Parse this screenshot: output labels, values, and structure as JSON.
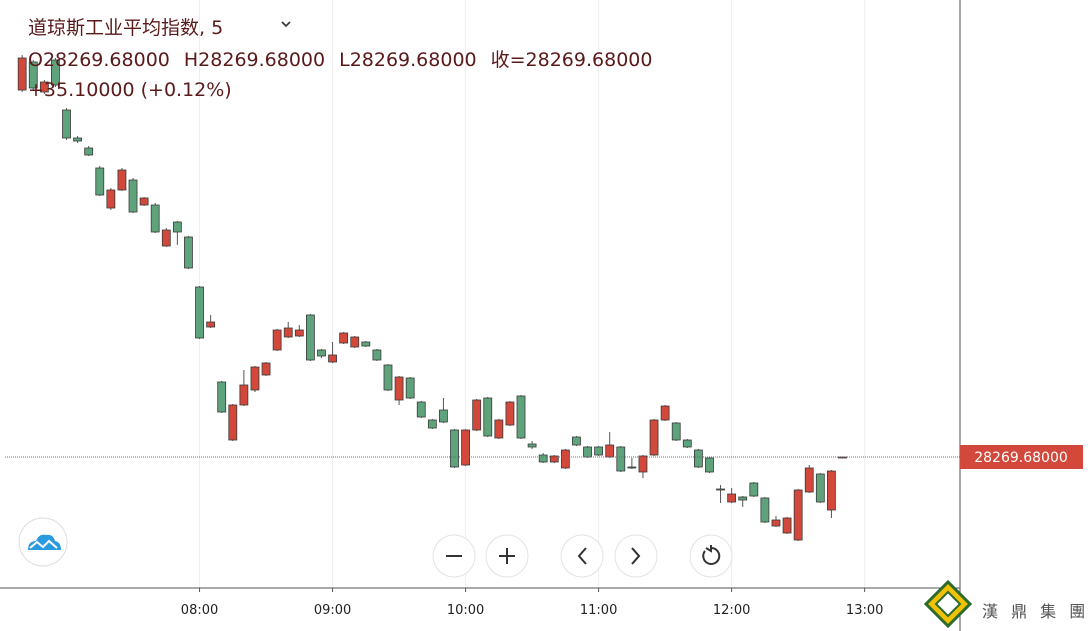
{
  "chart_data": {
    "type": "candlestick",
    "title": "道琼斯工业平均指数, 5",
    "ohlc_legend": [
      "O28269.68000",
      "H28269.68000",
      "L28269.68000",
      "收=28269.68000"
    ],
    "change_text": "+35.10000 (+0.12%)",
    "last_price": 28269.68,
    "last_price_label": "28269.68000",
    "watermark": "漢 鼎 集 團",
    "up_color": "#d2493b",
    "down_color": "#5fa37c",
    "xlim": [
      "06:30",
      "13:43"
    ],
    "xticks": [
      "08:00",
      "09:00",
      "10:00",
      "11:00",
      "12:00",
      "13:00"
    ],
    "ylim": [
      28204.18,
      28498.18
    ],
    "grid": true,
    "x": [
      "06:40",
      "06:45",
      "06:50",
      "06:55",
      "07:00",
      "07:05",
      "07:10",
      "07:15",
      "07:20",
      "07:25",
      "07:30",
      "07:35",
      "07:40",
      "07:45",
      "07:50",
      "07:55",
      "08:00",
      "08:05",
      "08:10",
      "08:15",
      "08:20",
      "08:25",
      "08:30",
      "08:35",
      "08:40",
      "08:45",
      "08:50",
      "08:55",
      "09:00",
      "09:05",
      "09:10",
      "09:15",
      "09:20",
      "09:25",
      "09:30",
      "09:35",
      "09:40",
      "09:45",
      "09:50",
      "09:55",
      "10:00",
      "10:05",
      "10:10",
      "10:15",
      "10:20",
      "10:25",
      "10:30",
      "10:35",
      "10:40",
      "10:45",
      "10:50",
      "10:55",
      "11:00",
      "11:05",
      "11:10",
      "11:15",
      "11:20",
      "11:25",
      "11:30",
      "11:35",
      "11:40",
      "11:45",
      "11:50",
      "11:55",
      "12:00",
      "12:05",
      "12:10",
      "12:15",
      "12:20",
      "12:25",
      "12:30",
      "12:35",
      "12:40",
      "12:45",
      "12:50"
    ],
    "open": [
      28453.18,
      28467.18,
      28452.18,
      28468.18,
      28443.18,
      28429.18,
      28424.18,
      28414.18,
      28394.18,
      28403.18,
      28408.18,
      28395.68,
      28395.68,
      28375.18,
      28387.18,
      28379.68,
      28354.68,
      28334.68,
      28307.18,
      28278.18,
      28295.68,
      28303.18,
      28310.68,
      28323.18,
      28329.68,
      28330.18,
      28340.68,
      28323.18,
      28317.18,
      28326.68,
      28324.68,
      28327.18,
      28323.18,
      28315.68,
      28298.18,
      28309.18,
      28297.18,
      28288.18,
      28293.18,
      28283.18,
      28265.68,
      28283.18,
      28299.18,
      28279.18,
      28285.68,
      28300.18,
      28276.18,
      28270.68,
      28267.18,
      28264.18,
      28279.68,
      28274.68,
      28274.68,
      28269.68,
      28274.68,
      28264.68,
      28262.18,
      28270.68,
      28288.18,
      28286.68,
      28278.18,
      28273.18,
      28269.18,
      28253.68,
      28247.18,
      28249.68,
      28256.68,
      28249.18,
      28235.18,
      28231.68,
      28228.18,
      28252.18,
      28261.18,
      28243.18,
      28269.68
    ],
    "high": [
      28470.68,
      28468.18,
      28458.18,
      28469.18,
      28444.18,
      28430.18,
      28425.18,
      28415.18,
      28404.18,
      28414.18,
      28409.18,
      28399.68,
      28396.68,
      28384.18,
      28387.68,
      28380.18,
      28355.18,
      28340.68,
      28307.68,
      28296.18,
      28313.18,
      28315.18,
      28317.18,
      28333.68,
      28337.18,
      28335.68,
      28341.18,
      28323.68,
      28327.18,
      28332.18,
      28330.18,
      28327.68,
      28323.68,
      28316.18,
      28310.18,
      28309.68,
      28297.68,
      28288.68,
      28299.18,
      28283.68,
      28283.68,
      28298.68,
      28299.68,
      28288.68,
      28297.68,
      28300.68,
      28277.68,
      28271.68,
      28270.68,
      28273.68,
      28280.18,
      28275.18,
      28275.18,
      28282.18,
      28275.18,
      28269.18,
      28270.68,
      28288.68,
      28295.68,
      28287.18,
      28278.68,
      28273.68,
      28269.68,
      28255.68,
      28254.18,
      28250.18,
      28257.18,
      28249.68,
      28240.18,
      28239.68,
      28253.68,
      28265.68,
      28261.68,
      28263.18,
      28269.68
    ],
    "low": [
      28452.18,
      28453.18,
      28451.18,
      28454.68,
      28428.18,
      28426.68,
      28420.18,
      28400.18,
      28393.18,
      28402.68,
      28391.68,
      28395.18,
      28381.68,
      28374.68,
      28375.68,
      28363.68,
      28328.68,
      28334.18,
      28291.68,
      28277.68,
      28295.18,
      28302.18,
      28310.18,
      28322.68,
      28329.18,
      28329.68,
      28317.68,
      28319.18,
      28316.68,
      28326.18,
      28324.18,
      28324.68,
      28317.68,
      28302.68,
      28295.68,
      28298.68,
      28289.18,
      28283.68,
      28286.68,
      28264.18,
      28265.18,
      28282.68,
      28279.68,
      28278.68,
      28285.18,
      28278.68,
      28273.68,
      28266.68,
      28266.68,
      28263.68,
      28275.18,
      28269.18,
      28270.18,
      28269.18,
      28262.18,
      28263.68,
      28259.18,
      28270.18,
      28287.68,
      28277.68,
      28274.18,
      28264.18,
      28261.68,
      28246.68,
      28246.68,
      28244.68,
      28249.68,
      28236.68,
      28234.68,
      28231.18,
      28227.68,
      28251.68,
      28246.68,
      28239.18,
      28269.68
    ],
    "close": [
      28469.18,
      28454.18,
      28457.18,
      28455.68,
      28429.18,
      28427.68,
      28420.68,
      28400.68,
      28403.18,
      28413.18,
      28392.18,
      28399.18,
      28382.18,
      28383.18,
      28382.18,
      28364.18,
      28329.18,
      28337.18,
      28292.18,
      28295.68,
      28305.68,
      28314.68,
      28316.68,
      28333.18,
      28334.18,
      28333.18,
      28318.18,
      28320.18,
      28320.68,
      28331.68,
      28329.68,
      28325.18,
      28318.18,
      28303.18,
      28309.68,
      28299.18,
      28289.68,
      28284.18,
      28287.18,
      28264.68,
      28283.18,
      28298.18,
      28280.18,
      28288.18,
      28297.18,
      28279.18,
      28274.68,
      28267.18,
      28270.18,
      28273.18,
      28275.68,
      28269.68,
      28270.68,
      28275.68,
      28262.68,
      28264.18,
      28270.18,
      28288.18,
      28295.18,
      28278.18,
      28274.68,
      28264.68,
      28262.18,
      28253.18,
      28251.18,
      28248.18,
      28250.18,
      28237.18,
      28238.18,
      28239.18,
      28253.18,
      28264.18,
      28247.18,
      28262.68,
      28269.68
    ]
  }
}
